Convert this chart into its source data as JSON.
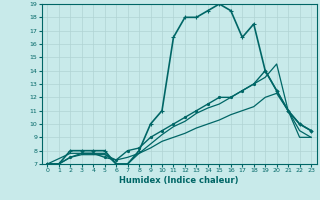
{
  "xlabel": "Humidex (Indice chaleur)",
  "bg_color": "#c8eaea",
  "grid_color": "#b0d4d4",
  "line_color": "#006666",
  "xlim": [
    -0.5,
    23.5
  ],
  "ylim": [
    7,
    19
  ],
  "xticks": [
    0,
    1,
    2,
    3,
    4,
    5,
    6,
    7,
    8,
    9,
    10,
    11,
    12,
    13,
    14,
    15,
    16,
    17,
    18,
    19,
    20,
    21,
    22,
    23
  ],
  "yticks": [
    7,
    8,
    9,
    10,
    11,
    12,
    13,
    14,
    15,
    16,
    17,
    18,
    19
  ],
  "lines": [
    {
      "x": [
        0,
        1,
        2,
        3,
        4,
        5,
        6,
        7,
        8,
        9,
        10,
        11,
        12,
        13,
        14,
        15,
        16,
        17,
        18,
        19,
        20,
        21,
        22,
        23
      ],
      "y": [
        7,
        7,
        8,
        8,
        8,
        8,
        7,
        7,
        8,
        10,
        11,
        16.5,
        18,
        18,
        18.5,
        19,
        18.5,
        16.5,
        17.5,
        14,
        12.5,
        11,
        10,
        9.5
      ],
      "marker": "+",
      "lw": 1.2
    },
    {
      "x": [
        0,
        1,
        2,
        3,
        4,
        5,
        6,
        7,
        8,
        9,
        10,
        11,
        12,
        13,
        14,
        15,
        16,
        17,
        18,
        19,
        20,
        21,
        22,
        23
      ],
      "y": [
        7,
        7,
        7.5,
        7.8,
        7.8,
        7.5,
        7.3,
        8,
        8.2,
        9,
        9.5,
        10,
        10.5,
        11,
        11.5,
        12,
        12,
        12.5,
        13,
        14,
        12.5,
        11,
        10,
        9.5
      ],
      "marker": ".",
      "lw": 1.0
    },
    {
      "x": [
        0,
        1,
        2,
        3,
        4,
        5,
        6,
        7,
        8,
        9,
        10,
        11,
        12,
        13,
        14,
        15,
        16,
        17,
        18,
        19,
        20,
        21,
        22,
        23
      ],
      "y": [
        7,
        7,
        7.5,
        7.7,
        7.7,
        7.7,
        7.3,
        7.5,
        7.8,
        8.2,
        8.7,
        9,
        9.3,
        9.7,
        10,
        10.3,
        10.7,
        11,
        11.3,
        12,
        12.3,
        11,
        9.5,
        9.0
      ],
      "marker": null,
      "lw": 0.9
    },
    {
      "x": [
        0,
        2,
        3,
        4,
        5,
        6,
        7,
        8,
        9,
        10,
        11,
        12,
        13,
        14,
        15,
        16,
        17,
        18,
        19,
        20,
        21,
        22,
        23
      ],
      "y": [
        7,
        7.8,
        7.8,
        7.8,
        7.8,
        7.0,
        7.0,
        7.8,
        8.5,
        9.2,
        9.8,
        10.2,
        10.8,
        11.2,
        11.5,
        12,
        12.5,
        13,
        13.5,
        14.5,
        11,
        9,
        9.0
      ],
      "marker": null,
      "lw": 0.9
    }
  ]
}
